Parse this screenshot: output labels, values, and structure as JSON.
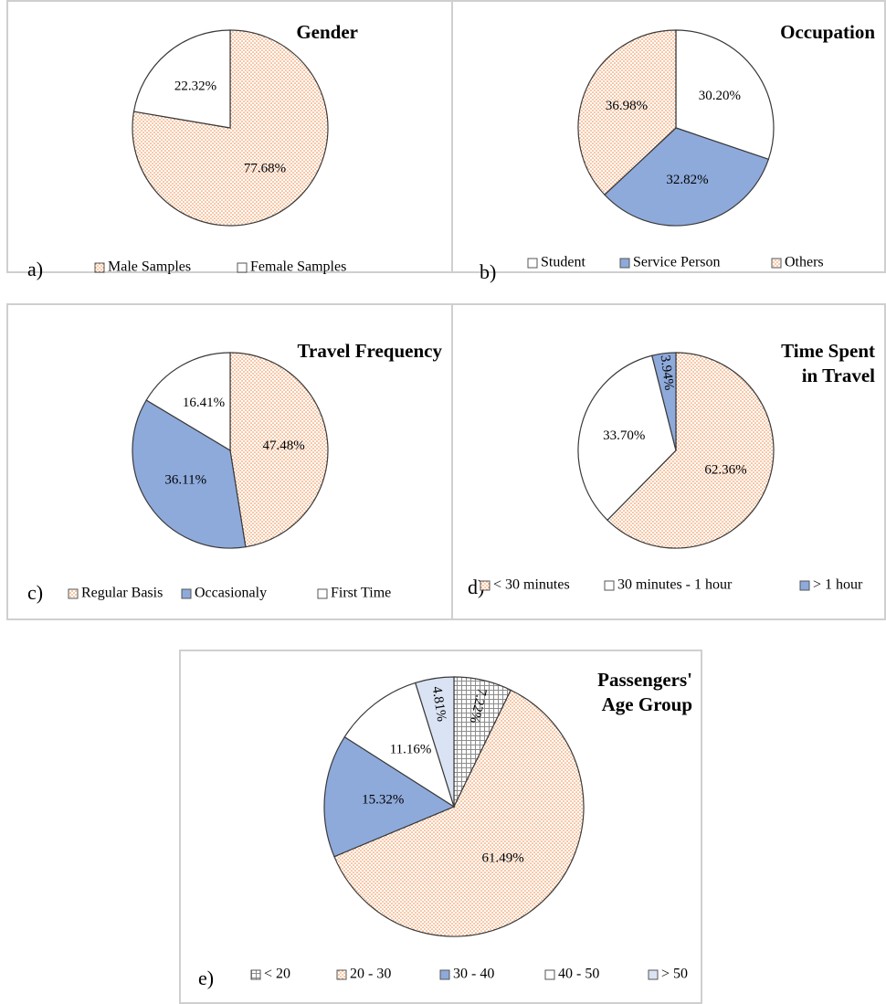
{
  "chart_data": [
    {
      "type": "pie",
      "panel_label": "a)",
      "title": [
        "Gender"
      ],
      "categories": [
        "Male Samples",
        "Female Samples"
      ],
      "values": [
        77.68,
        22.32
      ],
      "value_labels": [
        "77.68%",
        "22.32%"
      ],
      "colors": [
        "#ed7d31",
        "#ffffff"
      ],
      "patterns": [
        "dots",
        "none"
      ]
    },
    {
      "type": "pie",
      "panel_label": "b)",
      "title": [
        "Occupation"
      ],
      "categories": [
        "Student",
        "Service Person",
        "Others"
      ],
      "values": [
        30.2,
        32.82,
        36.98
      ],
      "value_labels": [
        "30.20%",
        "32.82%",
        "36.98%"
      ],
      "colors": [
        "#ffffff",
        "#8eaadb",
        "#ed7d31"
      ],
      "patterns": [
        "none",
        "none",
        "dots"
      ]
    },
    {
      "type": "pie",
      "panel_label": "c)",
      "title": [
        "Travel Frequency"
      ],
      "categories": [
        "Regular Basis",
        "Occasionaly",
        "First Time"
      ],
      "values": [
        47.48,
        36.11,
        16.41
      ],
      "value_labels": [
        "47.48%",
        "36.11%",
        "16.41%"
      ],
      "colors": [
        "#ed7d31",
        "#8eaadb",
        "#ffffff"
      ],
      "patterns": [
        "dots",
        "none",
        "none"
      ]
    },
    {
      "type": "pie",
      "panel_label": "d)",
      "title": [
        "Time Spent",
        "in Travel"
      ],
      "categories": [
        "< 30 minutes",
        "30 minutes - 1 hour",
        "> 1 hour"
      ],
      "values": [
        62.36,
        33.7,
        3.94
      ],
      "value_labels": [
        "62.36%",
        "33.70%",
        "3.94%"
      ],
      "colors": [
        "#ed7d31",
        "#ffffff",
        "#8eaadb"
      ],
      "patterns": [
        "dots",
        "none",
        "none"
      ]
    },
    {
      "type": "pie",
      "panel_label": "e)",
      "title": [
        "Passengers'",
        "Age Group"
      ],
      "categories": [
        "< 20",
        "20 - 30",
        "30 - 40",
        "40 - 50",
        "> 50"
      ],
      "values": [
        7.22,
        61.49,
        15.32,
        11.16,
        4.81
      ],
      "value_labels": [
        "7.22%",
        "61.49%",
        "15.32%",
        "11.16%",
        "4.81%"
      ],
      "colors": [
        "#8c8c8c",
        "#ed7d31",
        "#8eaadb",
        "#ffffff",
        "#dae3f3"
      ],
      "patterns": [
        "grid",
        "dots",
        "none",
        "none",
        "none"
      ]
    }
  ]
}
